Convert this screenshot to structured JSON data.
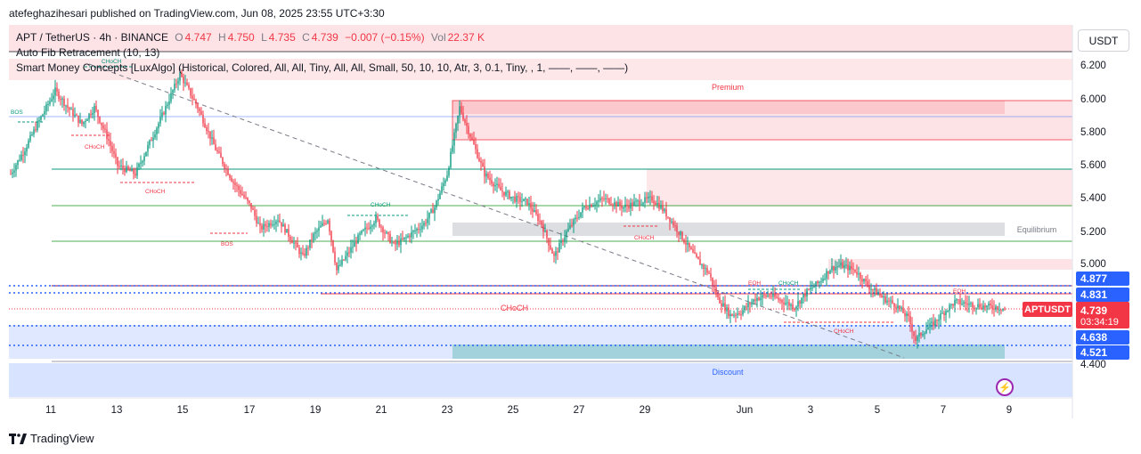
{
  "header": {
    "publisher": "atefeghazihesari published on TradingView.com, Jun 08, 2025 23:55 UTC+3:30"
  },
  "legend": {
    "symbol": "APT / TetherUS · 4h · BINANCE",
    "o_label": "O",
    "o_value": "4.747",
    "h_label": "H",
    "h_value": "4.750",
    "l_label": "L",
    "l_value": "4.735",
    "c_label": "C",
    "c_value": "4.739",
    "change": "−0.007 (−0.15%)",
    "vol_label": "Vol",
    "vol_value": "22.37 K",
    "indicator1": "Auto Fib Retracement (10, 13)",
    "indicator2": "Smart Money Concepts [LuxAlgo] (Historical, Colored, All, All, Tiny, All, All, Small, 50, 10, 10, Atr, 3, 0.1, Tiny, , 1, ——, ——, ——)"
  },
  "currency": "USDT",
  "y_axis": [
    "6.200",
    "6.000",
    "5.800",
    "5.600",
    "5.400",
    "5.200",
    "5.000",
    "4.400"
  ],
  "price_tags": {
    "p1": "4.877",
    "p2": "4.831",
    "p3": "4.638",
    "p4": "4.521",
    "current": "4.739",
    "countdown": "03:34:19"
  },
  "last_label": "APTUSDT",
  "x_axis": [
    "11",
    "13",
    "15",
    "17",
    "19",
    "21",
    "23",
    "25",
    "27",
    "29",
    "Jun",
    "3",
    "5",
    "7",
    "9"
  ],
  "zones": {
    "premium": "Premium",
    "equilibrium": "Equilibrium",
    "discount": "Discount"
  },
  "smc_labels": {
    "bos1": "BOS",
    "bos2": "BOS",
    "choch_main": "CHoCH",
    "choch": "CHoCH",
    "eqh": "EQH"
  },
  "footer": {
    "brand": "TradingView"
  },
  "colors": {
    "up": "#089981",
    "down": "#f23645",
    "premium": "#f23645",
    "discount": "#2962ff",
    "equilibrium": "#787b86"
  },
  "chart_data": {
    "type": "candlestick",
    "symbol": "APT / TetherUS",
    "interval": "4h",
    "x_labels": [
      "11",
      "13",
      "15",
      "17",
      "19",
      "21",
      "23",
      "25",
      "27",
      "29",
      "Jun",
      "3",
      "5",
      "7",
      "9"
    ],
    "ylim": [
      4.4,
      6.3
    ],
    "path": [
      [
        0,
        5.55
      ],
      [
        8,
        5.7
      ],
      [
        15,
        5.85
      ],
      [
        25,
        6.05
      ],
      [
        32,
        5.95
      ],
      [
        40,
        5.85
      ],
      [
        47,
        5.95
      ],
      [
        55,
        5.75
      ],
      [
        60,
        5.6
      ],
      [
        70,
        5.55
      ],
      [
        85,
        5.9
      ],
      [
        95,
        6.15
      ],
      [
        105,
        5.95
      ],
      [
        115,
        5.7
      ],
      [
        125,
        5.5
      ],
      [
        135,
        5.35
      ],
      [
        140,
        5.22
      ],
      [
        150,
        5.28
      ],
      [
        158,
        5.15
      ],
      [
        164,
        5.05
      ],
      [
        170,
        5.18
      ],
      [
        178,
        5.28
      ],
      [
        183,
        4.97
      ],
      [
        188,
        5.05
      ],
      [
        196,
        5.18
      ],
      [
        205,
        5.28
      ],
      [
        215,
        5.12
      ],
      [
        220,
        5.15
      ],
      [
        226,
        5.2
      ],
      [
        232,
        5.25
      ],
      [
        238,
        5.35
      ],
      [
        245,
        5.55
      ],
      [
        252,
        5.95
      ],
      [
        258,
        5.78
      ],
      [
        266,
        5.55
      ],
      [
        275,
        5.45
      ],
      [
        283,
        5.4
      ],
      [
        290,
        5.38
      ],
      [
        298,
        5.25
      ],
      [
        305,
        5.05
      ],
      [
        312,
        5.2
      ],
      [
        322,
        5.35
      ],
      [
        333,
        5.4
      ],
      [
        344,
        5.35
      ],
      [
        352,
        5.38
      ],
      [
        360,
        5.4
      ],
      [
        365,
        5.35
      ],
      [
        372,
        5.25
      ],
      [
        378,
        5.15
      ],
      [
        384,
        5.05
      ],
      [
        392,
        4.95
      ],
      [
        397,
        4.8
      ],
      [
        404,
        4.7
      ],
      [
        410,
        4.72
      ],
      [
        418,
        4.8
      ],
      [
        426,
        4.82
      ],
      [
        434,
        4.78
      ],
      [
        440,
        4.75
      ],
      [
        447,
        4.84
      ],
      [
        454,
        4.9
      ],
      [
        460,
        4.98
      ],
      [
        466,
        5.0
      ],
      [
        474,
        4.97
      ],
      [
        482,
        4.87
      ],
      [
        490,
        4.8
      ],
      [
        497,
        4.76
      ],
      [
        504,
        4.68
      ],
      [
        508,
        4.55
      ],
      [
        512,
        4.6
      ],
      [
        518,
        4.65
      ],
      [
        524,
        4.72
      ],
      [
        530,
        4.78
      ],
      [
        536,
        4.77
      ],
      [
        542,
        4.76
      ],
      [
        548,
        4.75
      ],
      [
        553,
        4.75
      ],
      [
        558,
        4.74
      ]
    ]
  }
}
